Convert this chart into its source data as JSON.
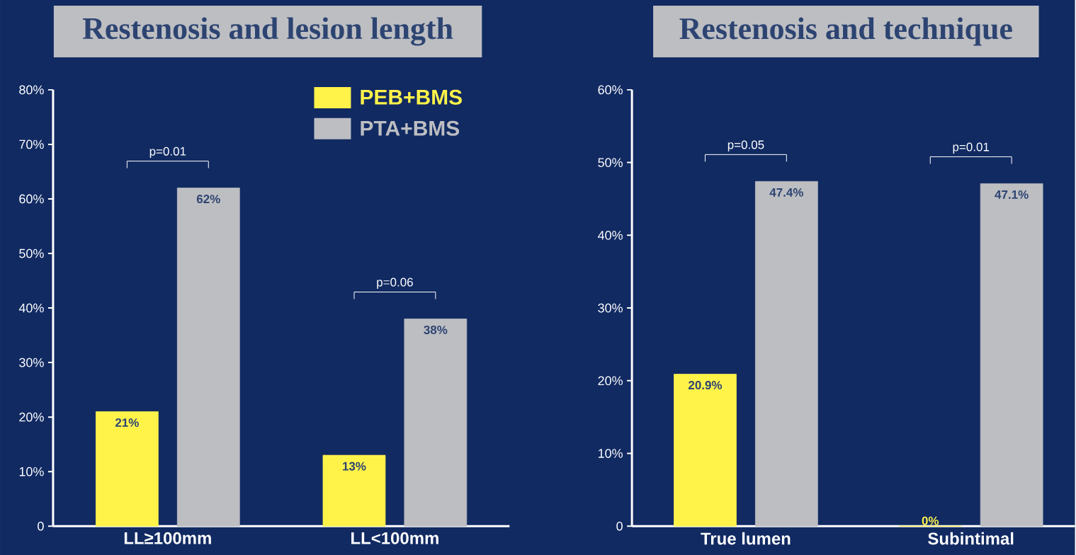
{
  "chart_data": [
    {
      "type": "bar",
      "title": "Restenosis and lesion length",
      "categories": [
        "LL≥100mm",
        "LL<100mm"
      ],
      "series": [
        {
          "name": "PEB+BMS",
          "color": "#fff34a",
          "values": [
            21,
            13
          ],
          "value_labels": [
            "21%",
            "13%"
          ]
        },
        {
          "name": "PTA+BMS",
          "color": "#bdbec2",
          "values": [
            62,
            38
          ],
          "value_labels": [
            "62%",
            "38%"
          ]
        }
      ],
      "ylim": [
        0,
        80
      ],
      "yticks": [
        {
          "value": 0,
          "label": "0"
        },
        {
          "value": 10,
          "label": "10%"
        },
        {
          "value": 20,
          "label": "20%"
        },
        {
          "value": 30,
          "label": "30%"
        },
        {
          "value": 40,
          "label": "40%"
        },
        {
          "value": 50,
          "label": "50%"
        },
        {
          "value": 60,
          "label": "60%"
        },
        {
          "value": 70,
          "label": "70%"
        },
        {
          "value": 80,
          "label": "80%"
        }
      ],
      "annotations": [
        "p=0.01",
        "p=0.06"
      ],
      "legend": "top right",
      "grid": false
    },
    {
      "type": "bar",
      "title": "Restenosis and technique",
      "categories": [
        "True lumen",
        "Subintimal"
      ],
      "series": [
        {
          "color": "#fff34a",
          "values": [
            20.9,
            0
          ],
          "value_labels": [
            "20.9%",
            "0%"
          ]
        },
        {
          "color": "#bdbec2",
          "values": [
            47.4,
            47.1
          ],
          "value_labels": [
            "47.4%",
            "47.1%"
          ]
        }
      ],
      "ylim": [
        0,
        60
      ],
      "yticks": [
        {
          "value": 0,
          "label": "0"
        },
        {
          "value": 10,
          "label": "10%"
        },
        {
          "value": 20,
          "label": "20%"
        },
        {
          "value": 30,
          "label": "30%"
        },
        {
          "value": 40,
          "label": "40%"
        },
        {
          "value": 50,
          "label": "50%"
        },
        {
          "value": 60,
          "label": "60%"
        }
      ],
      "annotations": [
        "p=0.05",
        "p=0.01"
      ],
      "grid": false
    }
  ]
}
